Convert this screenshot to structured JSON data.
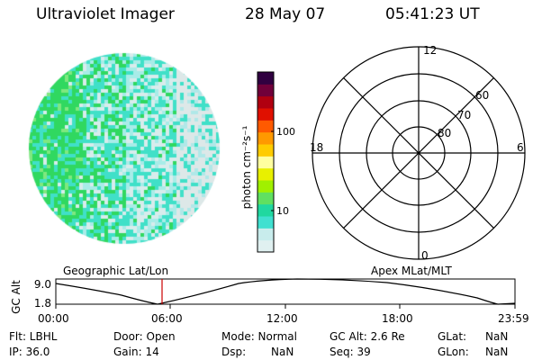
{
  "header": {
    "instrument": "Ultraviolet Imager",
    "date": "28 May 07",
    "time": "05:41:23 UT"
  },
  "colorbar": {
    "unit_label": "photon cm⁻²s⁻¹",
    "ticks": [
      "100",
      "10"
    ],
    "colors": [
      "#e0f0f0",
      "#c8ecec",
      "#40e0d0",
      "#20d8a0",
      "#60e060",
      "#a0f000",
      "#e8f000",
      "#ffffa0",
      "#ffcc00",
      "#ff9900",
      "#ff5a00",
      "#e01000",
      "#b00010",
      "#70003a",
      "#300040"
    ]
  },
  "polar": {
    "mlt_labels": [
      "12",
      "18",
      "6",
      "0"
    ],
    "lat_labels": [
      "60",
      "70",
      "80"
    ]
  },
  "labels": {
    "geographic": "Geographic Lat/Lon",
    "apex": "Apex MLat/MLT"
  },
  "alt_plot": {
    "ylabel": "GC Alt",
    "yticks": [
      "9.0",
      "1.8"
    ],
    "xticks": [
      "00:00",
      "06:00",
      "12:00",
      "18:00",
      "23:59"
    ],
    "current_marker_color": "#cc0000"
  },
  "info": {
    "flt": "Flt: LBHL",
    "ip": "IP: 36.0",
    "door": "Door: Open",
    "gain": "Gain: 14",
    "mode": "Mode: Normal",
    "dsp": "Dsp:",
    "dsp_val": "NaN",
    "gc_alt": "GC Alt: 2.6 Re",
    "seq": "Seq: 39",
    "glat": "GLat:",
    "glat_val": "NaN",
    "glon": "GLon:",
    "glon_val": "NaN"
  }
}
